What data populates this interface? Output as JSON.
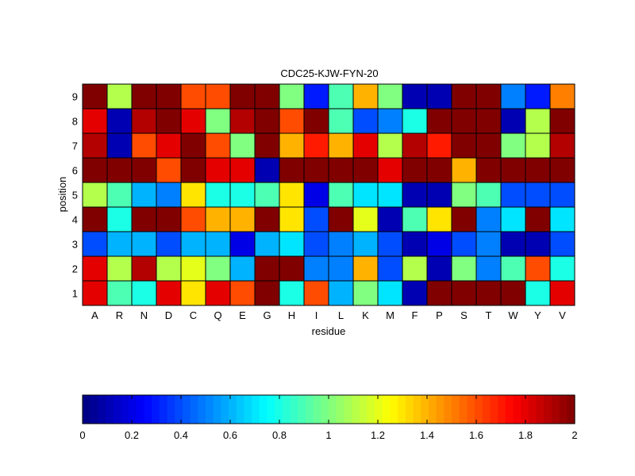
{
  "chart_data": {
    "type": "heatmap",
    "title": "CDC25-KJW-FYN-20",
    "xlabel": "residue",
    "ylabel": "position",
    "x_categories": [
      "A",
      "R",
      "N",
      "D",
      "C",
      "Q",
      "E",
      "G",
      "H",
      "I",
      "L",
      "K",
      "M",
      "F",
      "P",
      "S",
      "T",
      "W",
      "Y",
      "V"
    ],
    "y_categories": [
      "1",
      "2",
      "3",
      "4",
      "5",
      "6",
      "7",
      "8",
      "9"
    ],
    "values": [
      [
        1.8,
        0.9,
        0.8,
        1.8,
        1.3,
        1.8,
        1.6,
        2.0,
        0.8,
        1.6,
        0.6,
        1.0,
        0.7,
        0.1,
        2.0,
        2.0,
        2.0,
        2.0,
        0.8,
        1.8
      ],
      [
        1.8,
        1.1,
        1.9,
        1.1,
        1.2,
        1.0,
        0.6,
        2.0,
        2.0,
        0.5,
        0.5,
        1.4,
        0.4,
        1.1,
        0.1,
        1.0,
        0.5,
        0.9,
        1.6,
        0.8
      ],
      [
        0.4,
        0.6,
        0.6,
        0.4,
        0.6,
        0.6,
        0.2,
        0.6,
        0.7,
        0.4,
        0.5,
        0.6,
        0.4,
        0.1,
        0.2,
        0.4,
        0.5,
        0.1,
        0.1,
        0.4
      ],
      [
        2.0,
        0.8,
        2.0,
        2.0,
        1.6,
        1.4,
        1.4,
        2.0,
        1.3,
        0.4,
        2.0,
        1.2,
        0.1,
        0.9,
        1.3,
        2.0,
        0.5,
        0.7,
        2.0,
        0.7
      ],
      [
        1.1,
        0.9,
        0.6,
        0.5,
        1.3,
        0.8,
        0.8,
        0.9,
        1.3,
        0.2,
        0.9,
        0.7,
        0.7,
        0.1,
        0.1,
        1.0,
        0.9,
        0.4,
        0.4,
        0.4
      ],
      [
        2.0,
        2.0,
        2.0,
        1.6,
        2.0,
        1.8,
        1.8,
        0.1,
        2.0,
        2.0,
        2.0,
        2.0,
        1.8,
        2.0,
        2.0,
        1.4,
        2.0,
        2.0,
        2.0,
        2.0
      ],
      [
        1.9,
        0.1,
        1.6,
        1.8,
        2.0,
        1.6,
        1.0,
        2.0,
        1.4,
        1.7,
        1.4,
        1.8,
        1.1,
        1.9,
        1.7,
        2.0,
        2.0,
        1.0,
        1.1,
        1.9
      ],
      [
        1.8,
        0.1,
        1.9,
        2.0,
        1.8,
        1.0,
        1.9,
        2.0,
        1.6,
        2.0,
        0.9,
        0.4,
        0.5,
        0.8,
        2.0,
        2.0,
        2.0,
        0.1,
        1.1,
        2.0
      ],
      [
        2.0,
        1.1,
        2.0,
        2.0,
        1.6,
        1.6,
        2.0,
        2.0,
        1.0,
        0.3,
        0.9,
        1.4,
        1.0,
        0.1,
        0.1,
        2.0,
        2.0,
        0.5,
        0.3,
        1.5
      ]
    ],
    "zlim": [
      0,
      2
    ],
    "colorbar": {
      "ticks": [
        0,
        0.2,
        0.4,
        0.6,
        0.8,
        1,
        1.2,
        1.4,
        1.6,
        1.8,
        2
      ],
      "tick_labels": [
        "0",
        "0.2",
        "0.4",
        "0.6",
        "0.8",
        "1",
        "1.2",
        "1.4",
        "1.6",
        "1.8",
        "2"
      ],
      "orientation": "horizontal",
      "colormap": "jet"
    },
    "grid": false
  }
}
